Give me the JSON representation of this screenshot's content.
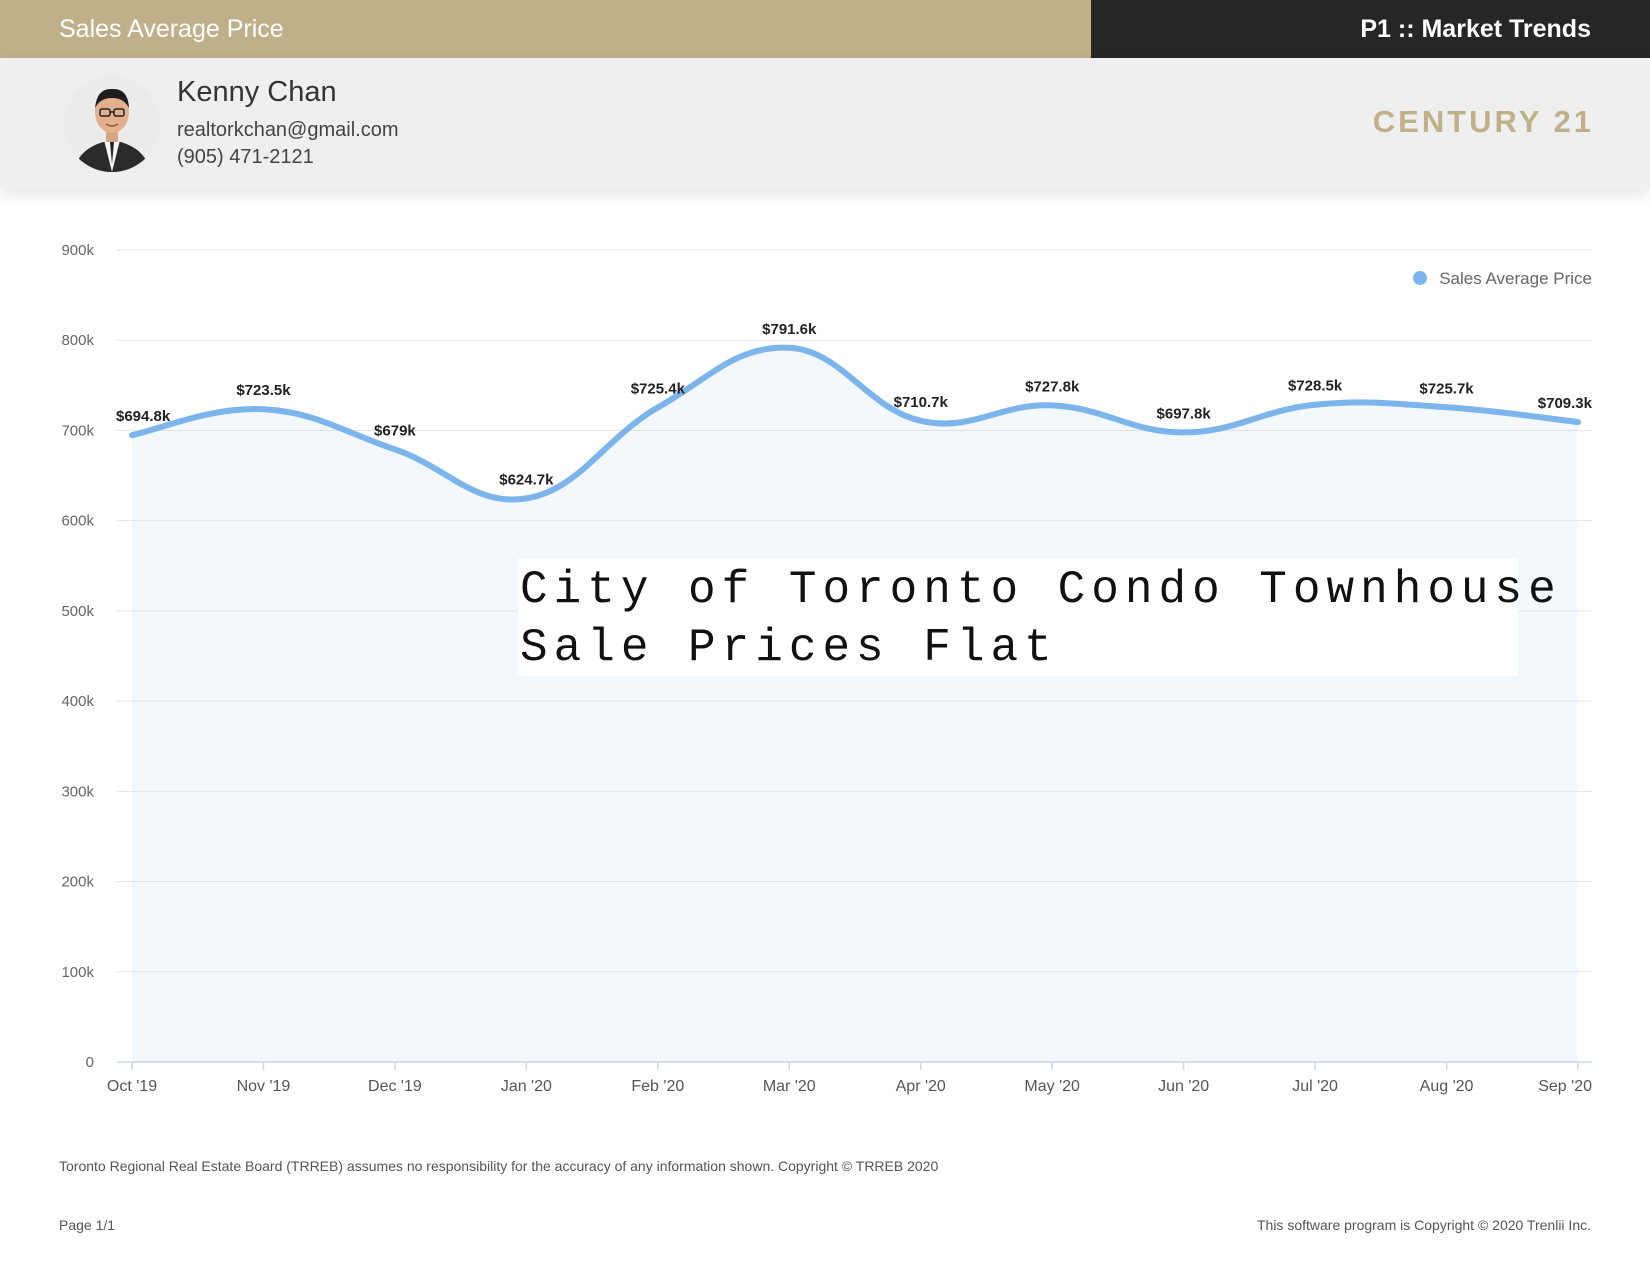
{
  "header": {
    "left_title": "Sales Average Price",
    "right_title": "P1 :: Market Trends"
  },
  "agent": {
    "name": "Kenny Chan",
    "email": "realtorkchan@gmail.com",
    "phone": "(905) 471-2121"
  },
  "brand": {
    "name": "CENTURY 21",
    "color": "#c0b08a"
  },
  "chart_data": {
    "type": "area",
    "categories": [
      "Oct '19",
      "Nov '19",
      "Dec '19",
      "Jan '20",
      "Feb '20",
      "Mar '20",
      "Apr '20",
      "May '20",
      "Jun '20",
      "Jul '20",
      "Aug '20",
      "Sep '20"
    ],
    "series": [
      {
        "name": "Sales Average Price",
        "values": [
          694.8,
          723.5,
          679,
          624.7,
          725.4,
          791.6,
          710.7,
          727.8,
          697.8,
          728.5,
          725.7,
          709.3
        ],
        "labels": [
          "$694.8k",
          "$723.5k",
          "$679k",
          "$624.7k",
          "$725.4k",
          "$791.6k",
          "$710.7k",
          "$727.8k",
          "$697.8k",
          "$728.5k",
          "$725.7k",
          "$709.3k"
        ],
        "color": "#7cb5ec"
      }
    ],
    "y_ticks": [
      "0",
      "100k",
      "200k",
      "300k",
      "400k",
      "500k",
      "600k",
      "700k",
      "800k",
      "900k"
    ],
    "ylim": [
      0,
      900
    ],
    "grid": true,
    "legend_position": "top-right",
    "annotation": "City of Toronto Condo Townhouse Sale Prices Flat"
  },
  "footer": {
    "disclaimer": "Toronto Regional Real Estate Board (TRREB) assumes no responsibility for the accuracy of any information shown. Copyright © TRREB 2020",
    "page": "Page 1/1",
    "software": "This software program is Copyright © 2020 Trenlii Inc."
  }
}
